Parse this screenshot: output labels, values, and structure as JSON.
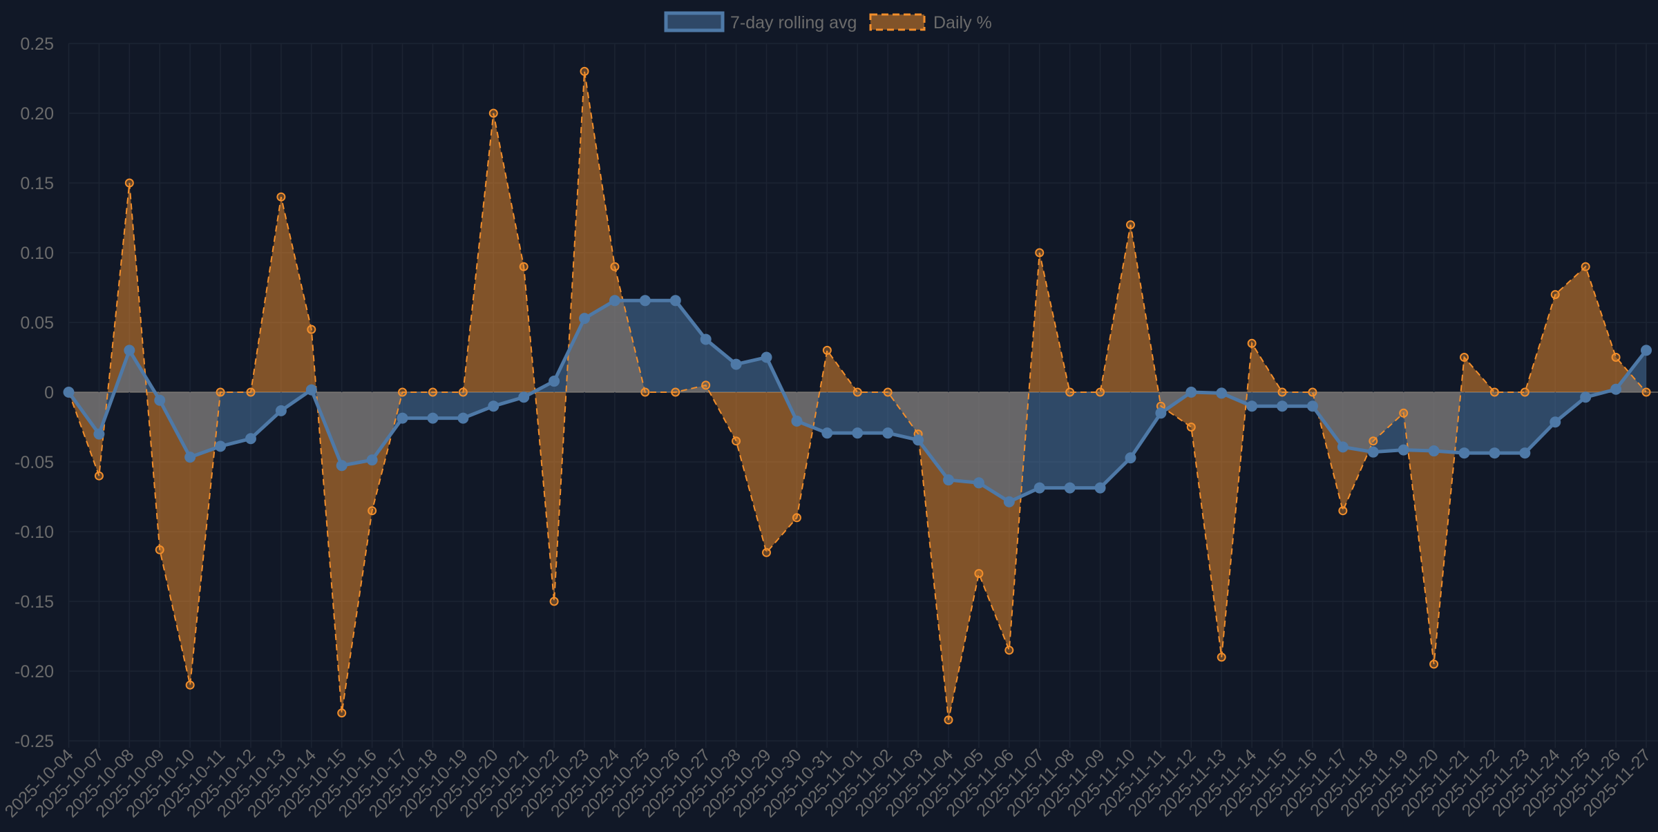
{
  "chart_data": {
    "type": "area",
    "title": "",
    "xlabel": "",
    "ylabel": "",
    "ylim": [
      -0.25,
      0.25
    ],
    "yticks": [
      "0.25",
      "0.20",
      "0.15",
      "0.10",
      "0.05",
      "0",
      "-0.05",
      "-0.10",
      "-0.15",
      "-0.20",
      "-0.25"
    ],
    "ytick_values": [
      0.25,
      0.2,
      0.15,
      0.1,
      0.05,
      0,
      -0.05,
      -0.1,
      -0.15,
      -0.2,
      -0.25
    ],
    "grid": true,
    "legend_position": "top",
    "categories": [
      "2025-10-04",
      "2025-10-07",
      "2025-10-08",
      "2025-10-09",
      "2025-10-10",
      "2025-10-11",
      "2025-10-12",
      "2025-10-13",
      "2025-10-14",
      "2025-10-15",
      "2025-10-16",
      "2025-10-17",
      "2025-10-18",
      "2025-10-19",
      "2025-10-20",
      "2025-10-21",
      "2025-10-22",
      "2025-10-23",
      "2025-10-24",
      "2025-10-25",
      "2025-10-26",
      "2025-10-27",
      "2025-10-28",
      "2025-10-29",
      "2025-10-30",
      "2025-10-31",
      "2025-11-01",
      "2025-11-02",
      "2025-11-03",
      "2025-11-04",
      "2025-11-05",
      "2025-11-06",
      "2025-11-07",
      "2025-11-08",
      "2025-11-09",
      "2025-11-10",
      "2025-11-11",
      "2025-11-12",
      "2025-11-13",
      "2025-11-14",
      "2025-11-15",
      "2025-11-16",
      "2025-11-17",
      "2025-11-18",
      "2025-11-19",
      "2025-11-20",
      "2025-11-21",
      "2025-11-22",
      "2025-11-23",
      "2025-11-24",
      "2025-11-25",
      "2025-11-26",
      "2025-11-27"
    ],
    "series": [
      {
        "name": "7-day rolling avg",
        "color": "#4e79a7",
        "fill": "rgba(78,121,167,0.5)",
        "values": [
          0,
          -0.03,
          0.03,
          -0.0058,
          -0.0466,
          -0.0388,
          -0.0333,
          -0.0133,
          0.0017,
          -0.0526,
          -0.0486,
          -0.0186,
          -0.0186,
          -0.0186,
          -0.01,
          -0.0036,
          0.0079,
          0.0529,
          0.0657,
          0.0657,
          0.0657,
          0.0379,
          0.02,
          0.025,
          -0.0207,
          -0.0293,
          -0.0293,
          -0.0293,
          -0.0343,
          -0.0629,
          -0.065,
          -0.0786,
          -0.0686,
          -0.0686,
          -0.0686,
          -0.0471,
          -0.015,
          0,
          -0.0007,
          -0.01,
          -0.01,
          -0.01,
          -0.0393,
          -0.0429,
          -0.0414,
          -0.0421,
          -0.0436,
          -0.0436,
          -0.0436,
          -0.0214,
          -0.0036,
          0.0021,
          0.03
        ]
      },
      {
        "name": "Daily %",
        "color": "#f28e2b",
        "fill": "rgba(242,142,43,0.5)",
        "dashed": true,
        "values": [
          0,
          -0.06,
          0.15,
          -0.113,
          -0.21,
          0,
          0,
          0.14,
          0.045,
          -0.23,
          -0.085,
          0,
          0,
          0,
          0.2,
          0.09,
          -0.15,
          0.23,
          0.09,
          0,
          0,
          0.005,
          -0.035,
          -0.115,
          -0.09,
          0.03,
          0,
          0,
          -0.03,
          -0.235,
          -0.13,
          -0.185,
          0.1,
          0,
          0,
          0.12,
          -0.01,
          -0.025,
          -0.19,
          0.035,
          0,
          0,
          -0.085,
          -0.035,
          -0.015,
          -0.195,
          0.025,
          0,
          0,
          0.07,
          0.09,
          0.025,
          0
        ]
      }
    ]
  }
}
